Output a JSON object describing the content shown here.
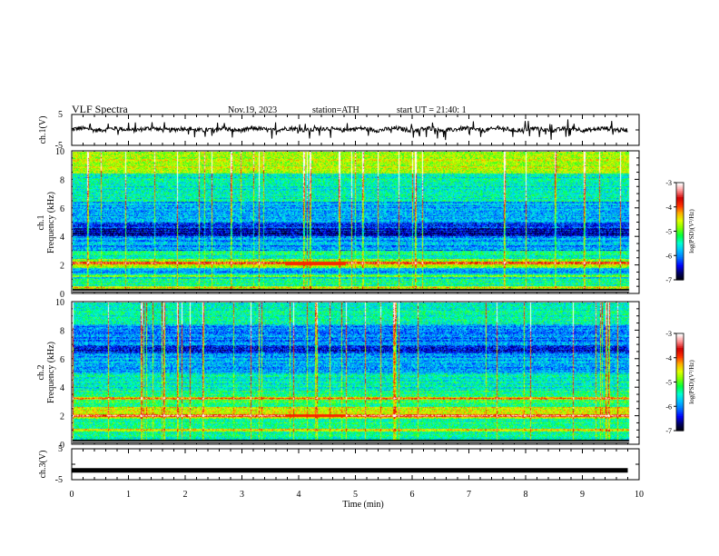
{
  "header": {
    "title": "VLF Spectra",
    "date": "Nov.19, 2023",
    "station": "station=ATH",
    "start": "start UT =  21:40: 1"
  },
  "colors": {
    "colormap": [
      "#000000",
      "#000060",
      "#0000ff",
      "#0070ff",
      "#00c0ff",
      "#00ffd0",
      "#00ff40",
      "#80ff00",
      "#e0ff00",
      "#ffb000",
      "#ff3000",
      "#d00000",
      "#ff9090",
      "#ffffff"
    ],
    "timeseries": "#000000"
  },
  "chart_data": [
    {
      "type": "line",
      "id": "ch1-waveform",
      "ylabel": "ch.1(V)",
      "ylim": [
        -5,
        5
      ],
      "yticks": [
        "5",
        "-5"
      ],
      "mean_v": 0.2,
      "description_values": "noisy waveform near 0 V with occasional spikes"
    },
    {
      "type": "heatmap",
      "id": "ch1-spectrogram",
      "ylabel": "ch.1 Frequency (kHz)",
      "ylim": [
        0,
        10
      ],
      "yticks": [
        "0",
        "2",
        "4",
        "6",
        "8",
        "10"
      ],
      "colorbar": {
        "label": "log(PSD)(V²/Hz)",
        "range": [
          -7,
          -3
        ],
        "ticks": [
          "-3",
          "-4",
          "-5",
          "-6",
          "-7"
        ]
      },
      "strong_bands_khz": [
        2.1,
        1.2,
        0.4
      ],
      "quiet_band_khz": [
        4.0,
        4.6
      ]
    },
    {
      "type": "heatmap",
      "id": "ch2-spectrogram",
      "ylabel": "ch.2 Frequency (kHz)",
      "ylim": [
        0,
        10
      ],
      "yticks": [
        "0",
        "2",
        "4",
        "6",
        "8",
        "10"
      ],
      "colorbar": {
        "label": "log(PSD)(V²/Hz)",
        "range": [
          -7,
          -3
        ],
        "ticks": [
          "-3",
          "-4",
          "-5",
          "-6",
          "-7"
        ]
      },
      "strong_bands_khz": [
        2.0,
        3.2,
        1.0
      ],
      "quiet_band_khz": [
        6.5,
        7.0
      ]
    },
    {
      "type": "line",
      "id": "ch3-waveform",
      "ylabel": "ch.3(V)",
      "ylim": [
        -5,
        5
      ],
      "yticks": [
        "5",
        "-5"
      ],
      "constant_v": -2
    }
  ],
  "xaxis": {
    "label": "Time (min)",
    "range": [
      0,
      10
    ],
    "ticks": [
      "0",
      "1",
      "2",
      "3",
      "4",
      "5",
      "6",
      "7",
      "8",
      "9",
      "10"
    ],
    "data_end_min": 9.8
  }
}
